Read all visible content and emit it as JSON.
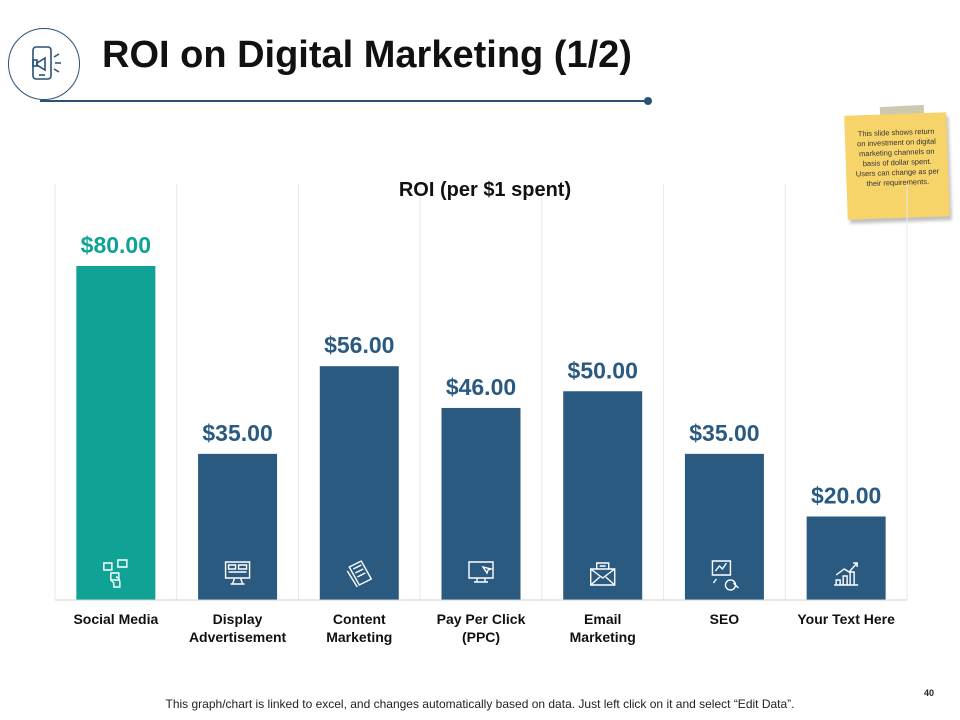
{
  "slide": {
    "title": "ROI on Digital Marketing (1/2)",
    "note": "This slide shows return on investment on digital marketing channels on basis of dollar spent. Users can change as per their requirements.",
    "footer": "This graph/chart is linked to excel, and changes automatically based on data. Just left click on it and select “Edit Data”.",
    "page_number": "40",
    "header_icon": "phone-megaphone-icon"
  },
  "colors": {
    "highlight": "#0fa295",
    "bar": "#2a5a80",
    "label_bar": "#2a5a80",
    "label_highlight": "#0fa295",
    "grid": "#e8e8e8"
  },
  "chart_data": {
    "type": "bar",
    "title": "ROI (per $1 spent)",
    "xlabel": "",
    "ylabel": "",
    "ylim": [
      0,
      100
    ],
    "grid": true,
    "categories": [
      "Social Media",
      "Display\nAdvertisement",
      "Content\nMarketing",
      "Pay Per Click\n(PPC)",
      "Email\nMarketing",
      "SEO",
      "Your Text Here"
    ],
    "values": [
      80,
      35,
      56,
      46,
      50,
      35,
      20
    ],
    "data_labels": [
      "$80.00",
      "$35.00",
      "$56.00",
      "$46.00",
      "$50.00",
      "$35.00",
      "$20.00"
    ],
    "highlight_index": 0,
    "bar_icons": [
      "social-media-icon",
      "display-ad-icon",
      "content-document-icon",
      "ppc-monitor-icon",
      "email-envelope-icon",
      "seo-magnifier-icon",
      "growth-chart-icon"
    ]
  }
}
